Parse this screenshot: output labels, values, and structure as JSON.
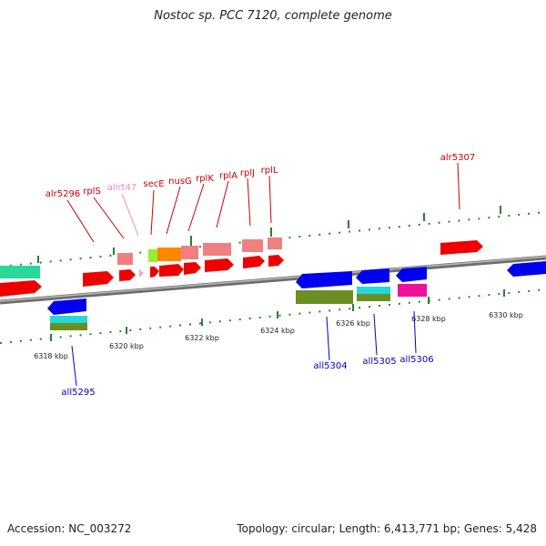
{
  "title": "Nostoc sp. PCC 7120, complete genome",
  "footer": {
    "accession": "Accession: NC_003272",
    "summary": "Topology: circular; Length: 6,413,771 bp; Genes: 5,428"
  },
  "colors": {
    "backbone": "#8a8a8a",
    "tick": "#2e7d32",
    "forward_label": "#cc0000",
    "reverse_label": "#0000bb",
    "trna_label": "#ee88cc"
  },
  "ticks": [
    {
      "label": "6318 kbp"
    },
    {
      "label": "6320 kbp"
    },
    {
      "label": "6322 kbp"
    },
    {
      "label": "6324 kbp"
    },
    {
      "label": "6326 kbp"
    },
    {
      "label": "6328 kbp"
    },
    {
      "label": "6330 kbp"
    }
  ],
  "gene_labels": [
    {
      "name": "alr5296",
      "strand": "forward"
    },
    {
      "name": "rplS",
      "strand": "forward"
    },
    {
      "name": "allrt47",
      "strand": "trna"
    },
    {
      "name": "secE",
      "strand": "forward"
    },
    {
      "name": "nusG",
      "strand": "forward"
    },
    {
      "name": "rplK",
      "strand": "forward"
    },
    {
      "name": "rplA",
      "strand": "forward"
    },
    {
      "name": "rplJ",
      "strand": "forward"
    },
    {
      "name": "rplL",
      "strand": "forward"
    },
    {
      "name": "alr5307",
      "strand": "forward"
    },
    {
      "name": "all5295",
      "strand": "reverse"
    },
    {
      "name": "all5304",
      "strand": "reverse"
    },
    {
      "name": "all5305",
      "strand": "reverse"
    },
    {
      "name": "all5306",
      "strand": "reverse"
    }
  ]
}
